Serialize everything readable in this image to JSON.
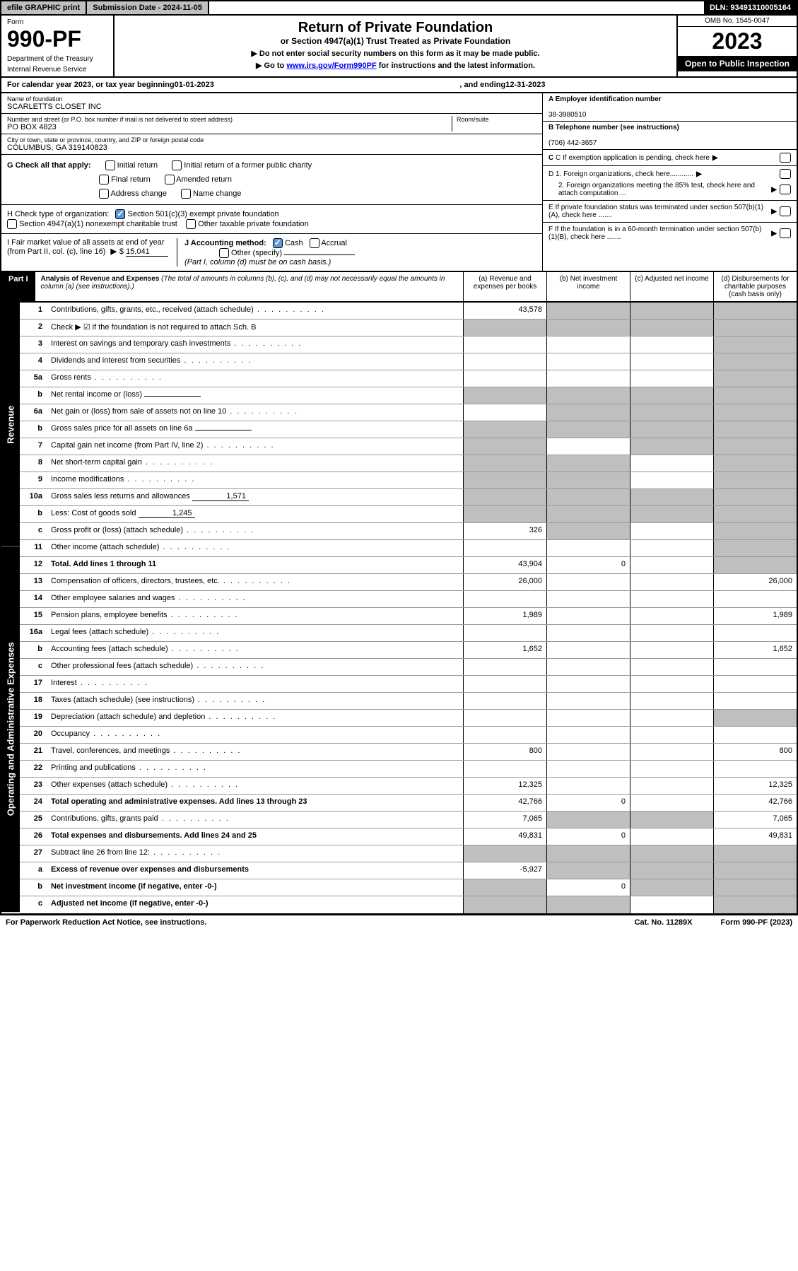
{
  "topbar": {
    "efile": "efile GRAPHIC print",
    "subdate_label": "Submission Date - 2024-11-05",
    "dln": "DLN: 93491310005164"
  },
  "header": {
    "form_label": "Form",
    "form_num": "990-PF",
    "dept": "Department of the Treasury",
    "irs": "Internal Revenue Service",
    "title": "Return of Private Foundation",
    "subtitle": "or Section 4947(a)(1) Trust Treated as Private Foundation",
    "instr1": "▶ Do not enter social security numbers on this form as it may be made public.",
    "instr2_pre": "▶ Go to ",
    "instr2_link": "www.irs.gov/Form990PF",
    "instr2_post": " for instructions and the latest information.",
    "omb": "OMB No. 1545-0047",
    "year": "2023",
    "open": "Open to Public Inspection"
  },
  "cal": {
    "pre": "For calendar year 2023, or tax year beginning ",
    "begin": "01-01-2023",
    "mid": " , and ending ",
    "end": "12-31-2023"
  },
  "info": {
    "name_label": "Name of foundation",
    "name": "SCARLETTS CLOSET INC",
    "addr_label": "Number and street (or P.O. box number if mail is not delivered to street address)",
    "addr": "PO BOX 4823",
    "room_label": "Room/suite",
    "city_label": "City or town, state or province, country, and ZIP or foreign postal code",
    "city": "COLUMBUS, GA  319140823",
    "a_label": "A Employer identification number",
    "a_val": "38-3980510",
    "b_label": "B Telephone number (see instructions)",
    "b_val": "(706) 442-3657",
    "c_label": "C If exemption application is pending, check here",
    "d1": "D 1. Foreign organizations, check here............",
    "d2": "2. Foreign organizations meeting the 85% test, check here and attach computation ...",
    "e_label": "E   If private foundation status was terminated under section 507(b)(1)(A), check here .......",
    "f_label": "F   If the foundation is in a 60-month termination under section 507(b)(1)(B), check here .......",
    "g_label": "G Check all that apply:",
    "g_opts": [
      "Initial return",
      "Initial return of a former public charity",
      "Final return",
      "Amended return",
      "Address change",
      "Name change"
    ],
    "h_label": "H Check type of organization:",
    "h_opt1": "Section 501(c)(3) exempt private foundation",
    "h_opt2": "Section 4947(a)(1) nonexempt charitable trust",
    "h_opt3": "Other taxable private foundation",
    "i_label": "I Fair market value of all assets at end of year (from Part II, col. (c), line 16)",
    "i_val": "15,041",
    "j_label": "J Accounting method:",
    "j_cash": "Cash",
    "j_accrual": "Accrual",
    "j_other": "Other (specify)",
    "j_note": "(Part I, column (d) must be on cash basis.)"
  },
  "part1": {
    "label": "Part I",
    "title": "Analysis of Revenue and Expenses",
    "note": " (The total of amounts in columns (b), (c), and (d) may not necessarily equal the amounts in column (a) (see instructions).)",
    "cols": [
      "(a)   Revenue and expenses per books",
      "(b)   Net investment income",
      "(c)   Adjusted net income",
      "(d)  Disbursements for charitable purposes (cash basis only)"
    ]
  },
  "side": {
    "revenue": "Revenue",
    "expenses": "Operating and Administrative Expenses"
  },
  "rows": [
    {
      "n": "1",
      "d": "Contributions, gifts, grants, etc., received (attach schedule)",
      "a": "43,578",
      "shade": [
        false,
        true,
        true,
        true
      ]
    },
    {
      "n": "2",
      "d": "Check ▶ ☑ if the foundation is not required to attach Sch. B",
      "nodots": true,
      "shade": [
        true,
        true,
        true,
        true
      ]
    },
    {
      "n": "3",
      "d": "Interest on savings and temporary cash investments",
      "shade": [
        false,
        false,
        false,
        true
      ]
    },
    {
      "n": "4",
      "d": "Dividends and interest from securities",
      "shade": [
        false,
        false,
        false,
        true
      ]
    },
    {
      "n": "5a",
      "d": "Gross rents",
      "shade": [
        false,
        false,
        false,
        true
      ]
    },
    {
      "n": "b",
      "d": "Net rental income or (loss)",
      "shade": [
        true,
        true,
        true,
        true
      ],
      "inline": ""
    },
    {
      "n": "6a",
      "d": "Net gain or (loss) from sale of assets not on line 10",
      "shade": [
        false,
        true,
        true,
        true
      ]
    },
    {
      "n": "b",
      "d": "Gross sales price for all assets on line 6a",
      "shade": [
        true,
        true,
        true,
        true
      ],
      "inline": ""
    },
    {
      "n": "7",
      "d": "Capital gain net income (from Part IV, line 2)",
      "shade": [
        true,
        false,
        true,
        true
      ]
    },
    {
      "n": "8",
      "d": "Net short-term capital gain",
      "shade": [
        true,
        true,
        false,
        true
      ]
    },
    {
      "n": "9",
      "d": "Income modifications",
      "shade": [
        true,
        true,
        false,
        true
      ]
    },
    {
      "n": "10a",
      "d": "Gross sales less returns and allowances",
      "shade": [
        true,
        true,
        true,
        true
      ],
      "inline": "1,571"
    },
    {
      "n": "b",
      "d": "Less: Cost of goods sold",
      "shade": [
        true,
        true,
        true,
        true
      ],
      "inline": "1,245"
    },
    {
      "n": "c",
      "d": "Gross profit or (loss) (attach schedule)",
      "a": "326",
      "shade": [
        false,
        true,
        false,
        true
      ]
    },
    {
      "n": "11",
      "d": "Other income (attach schedule)",
      "shade": [
        false,
        false,
        false,
        true
      ]
    },
    {
      "n": "12",
      "d": "Total. Add lines 1 through 11",
      "bold": true,
      "a": "43,904",
      "b": "0",
      "shade": [
        false,
        false,
        false,
        true
      ]
    },
    {
      "n": "13",
      "d": "Compensation of officers, directors, trustees, etc.",
      "a": "26,000",
      "dd": "26,000",
      "shade": [
        false,
        false,
        false,
        false
      ]
    },
    {
      "n": "14",
      "d": "Other employee salaries and wages",
      "shade": [
        false,
        false,
        false,
        false
      ]
    },
    {
      "n": "15",
      "d": "Pension plans, employee benefits",
      "a": "1,989",
      "dd": "1,989",
      "shade": [
        false,
        false,
        false,
        false
      ]
    },
    {
      "n": "16a",
      "d": "Legal fees (attach schedule)",
      "shade": [
        false,
        false,
        false,
        false
      ]
    },
    {
      "n": "b",
      "d": "Accounting fees (attach schedule)",
      "a": "1,652",
      "dd": "1,652",
      "shade": [
        false,
        false,
        false,
        false
      ]
    },
    {
      "n": "c",
      "d": "Other professional fees (attach schedule)",
      "shade": [
        false,
        false,
        false,
        false
      ]
    },
    {
      "n": "17",
      "d": "Interest",
      "shade": [
        false,
        false,
        false,
        false
      ]
    },
    {
      "n": "18",
      "d": "Taxes (attach schedule) (see instructions)",
      "shade": [
        false,
        false,
        false,
        false
      ]
    },
    {
      "n": "19",
      "d": "Depreciation (attach schedule) and depletion",
      "shade": [
        false,
        false,
        false,
        true
      ]
    },
    {
      "n": "20",
      "d": "Occupancy",
      "shade": [
        false,
        false,
        false,
        false
      ]
    },
    {
      "n": "21",
      "d": "Travel, conferences, and meetings",
      "a": "800",
      "dd": "800",
      "shade": [
        false,
        false,
        false,
        false
      ]
    },
    {
      "n": "22",
      "d": "Printing and publications",
      "shade": [
        false,
        false,
        false,
        false
      ]
    },
    {
      "n": "23",
      "d": "Other expenses (attach schedule)",
      "a": "12,325",
      "dd": "12,325",
      "shade": [
        false,
        false,
        false,
        false
      ]
    },
    {
      "n": "24",
      "d": "Total operating and administrative expenses. Add lines 13 through 23",
      "bold": true,
      "a": "42,766",
      "b": "0",
      "dd": "42,766",
      "shade": [
        false,
        false,
        false,
        false
      ]
    },
    {
      "n": "25",
      "d": "Contributions, gifts, grants paid",
      "a": "7,065",
      "dd": "7,065",
      "shade": [
        false,
        true,
        true,
        false
      ]
    },
    {
      "n": "26",
      "d": "Total expenses and disbursements. Add lines 24 and 25",
      "bold": true,
      "a": "49,831",
      "b": "0",
      "dd": "49,831",
      "shade": [
        false,
        false,
        false,
        false
      ]
    },
    {
      "n": "27",
      "d": "Subtract line 26 from line 12:",
      "shade": [
        true,
        true,
        true,
        true
      ]
    },
    {
      "n": "a",
      "d": "Excess of revenue over expenses and disbursements",
      "bold": true,
      "a": "-5,927",
      "shade": [
        false,
        true,
        true,
        true
      ]
    },
    {
      "n": "b",
      "d": "Net investment income (if negative, enter -0-)",
      "bold": true,
      "b": "0",
      "shade": [
        true,
        false,
        true,
        true
      ]
    },
    {
      "n": "c",
      "d": "Adjusted net income (if negative, enter -0-)",
      "bold": true,
      "shade": [
        true,
        true,
        false,
        true
      ]
    }
  ],
  "footer": {
    "left": "For Paperwork Reduction Act Notice, see instructions.",
    "mid": "Cat. No. 11289X",
    "right": "Form 990-PF (2023)"
  }
}
